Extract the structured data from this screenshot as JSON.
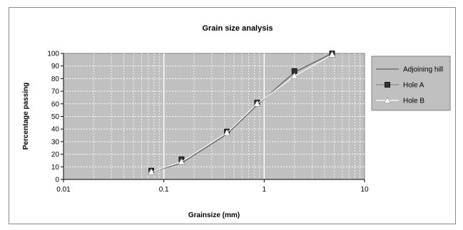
{
  "chart_data": {
    "type": "scatter",
    "title": "Grain size analysis",
    "xlabel": "Grainsize (mm)",
    "ylabel": "Percentage passing",
    "x_scale": "log",
    "xlim": [
      0.01,
      10
    ],
    "ylim": [
      0,
      100
    ],
    "x_ticks": [
      "0.01",
      "0.1",
      "1",
      "10"
    ],
    "y_ticks": [
      "0",
      "10",
      "20",
      "30",
      "40",
      "50",
      "60",
      "70",
      "80",
      "90",
      "100"
    ],
    "grid": true,
    "legend_position": "right",
    "series": [
      {
        "name": "Adjoining hill",
        "style": "line",
        "color": "#606060",
        "x": [
          0.075,
          0.15,
          0.425,
          0.85,
          2.0,
          4.75
        ],
        "y": [
          6,
          13,
          36,
          59,
          85,
          100
        ]
      },
      {
        "name": "Hole A",
        "style": "markers",
        "marker": "square",
        "color": "#333333",
        "x": [
          0.075,
          0.15,
          0.425,
          0.85,
          2.0,
          4.75
        ],
        "y": [
          7,
          16,
          38,
          61,
          86,
          100
        ]
      },
      {
        "name": "Hole B",
        "style": "line-markers",
        "marker": "triangle",
        "color": "#ffffff",
        "x": [
          0.075,
          0.15,
          0.425,
          0.85,
          2.0,
          4.75
        ],
        "y": [
          6,
          14,
          37,
          60,
          82,
          99
        ]
      }
    ]
  },
  "colors": {
    "plot_background": "#c0c0c0",
    "gridline": "#ffffff",
    "legend_background": "#c0c0c0"
  }
}
